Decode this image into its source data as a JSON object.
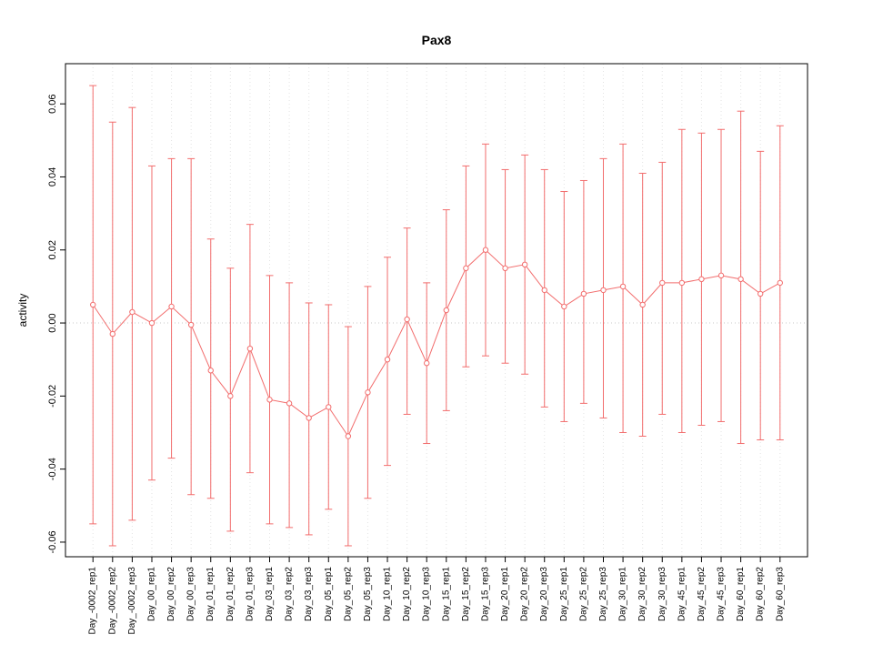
{
  "chart_data": {
    "type": "line",
    "title": "Pax8",
    "ylabel": "activity",
    "xlabel": "",
    "ylim": [
      -0.064,
      0.071
    ],
    "yticks": [
      -0.06,
      -0.04,
      -0.02,
      0.0,
      0.02,
      0.04,
      0.06
    ],
    "ytick_labels": [
      "-0.06",
      "-0.04",
      "-0.02",
      "0.00",
      "0.02",
      "0.04",
      "0.06"
    ],
    "grid": "vertical-dotted-per-category",
    "zero_reference_line": true,
    "legend_position": "none",
    "marker": "open-circle",
    "error_bars": true,
    "colors": {
      "series": "#f26d6d",
      "axis": "#000000",
      "grid": "#e3e3e3",
      "zero_line": "#c8c8c8",
      "background": "#ffffff"
    },
    "categories": [
      "Day_-0002_rep1",
      "Day_-0002_rep2",
      "Day_-0002_rep3",
      "Day_00_rep1",
      "Day_00_rep2",
      "Day_00_rep3",
      "Day_01_rep1",
      "Day_01_rep2",
      "Day_01_rep3",
      "Day_03_rep1",
      "Day_03_rep2",
      "Day_03_rep3",
      "Day_05_rep1",
      "Day_05_rep2",
      "Day_05_rep3",
      "Day_10_rep1",
      "Day_10_rep2",
      "Day_10_rep3",
      "Day_15_rep1",
      "Day_15_rep2",
      "Day_15_rep3",
      "Day_20_rep1",
      "Day_20_rep2",
      "Day_20_rep3",
      "Day_25_rep1",
      "Day_25_rep2",
      "Day_25_rep3",
      "Day_30_rep1",
      "Day_30_rep2",
      "Day_30_rep3",
      "Day_45_rep1",
      "Day_45_rep2",
      "Day_45_rep3",
      "Day_60_rep1",
      "Day_60_rep2",
      "Day_60_rep3"
    ],
    "series": [
      {
        "name": "Pax8 activity",
        "values": [
          0.005,
          -0.003,
          0.003,
          0.0,
          0.0045,
          -0.0005,
          -0.013,
          -0.02,
          -0.007,
          -0.021,
          -0.022,
          -0.026,
          -0.023,
          -0.031,
          -0.019,
          -0.01,
          0.001,
          -0.011,
          0.0035,
          0.015,
          0.02,
          0.015,
          0.016,
          0.009,
          0.0045,
          0.008,
          0.009,
          0.01,
          0.005,
          0.011,
          0.011,
          0.012,
          0.013,
          0.012,
          0.008,
          0.011
        ],
        "upper": [
          0.065,
          0.055,
          0.059,
          0.043,
          0.045,
          0.045,
          0.023,
          0.015,
          0.027,
          0.013,
          0.011,
          0.0055,
          0.005,
          -0.001,
          0.01,
          0.018,
          0.026,
          0.011,
          0.031,
          0.043,
          0.049,
          0.042,
          0.046,
          0.042,
          0.036,
          0.039,
          0.045,
          0.049,
          0.041,
          0.044,
          0.053,
          0.052,
          0.053,
          0.058,
          0.047,
          0.054
        ],
        "lower": [
          -0.055,
          -0.061,
          -0.054,
          -0.043,
          -0.037,
          -0.047,
          -0.048,
          -0.057,
          -0.041,
          -0.055,
          -0.056,
          -0.058,
          -0.051,
          -0.061,
          -0.048,
          -0.039,
          -0.025,
          -0.033,
          -0.024,
          -0.012,
          -0.009,
          -0.011,
          -0.014,
          -0.023,
          -0.027,
          -0.022,
          -0.026,
          -0.03,
          -0.031,
          -0.025,
          -0.03,
          -0.028,
          -0.027,
          -0.033,
          -0.032,
          -0.032
        ]
      }
    ]
  }
}
